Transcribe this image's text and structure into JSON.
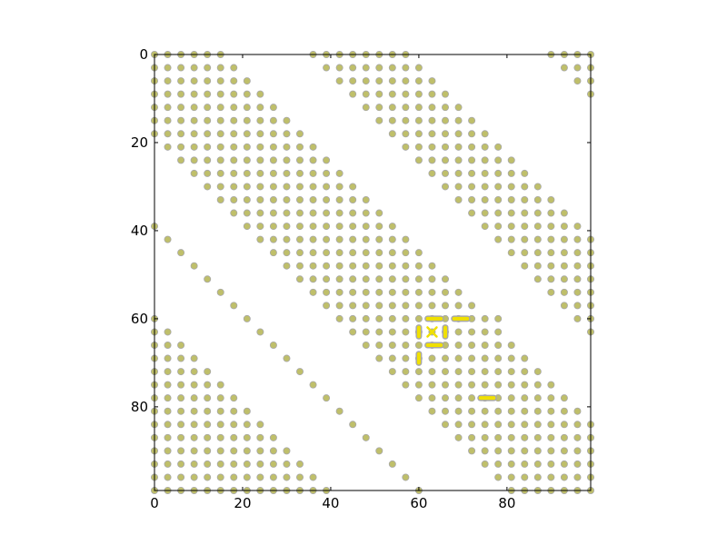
{
  "chart_data": {
    "type": "scatter",
    "title": "",
    "xlabel": "",
    "ylabel": "",
    "xlim": [
      0,
      99
    ],
    "ylim": [
      99,
      0
    ],
    "y_inverted": true,
    "grid": false,
    "x_ticks": [
      0,
      20,
      40,
      60,
      80
    ],
    "y_ticks": [
      0,
      20,
      40,
      60,
      80
    ],
    "x_tick_labels": [
      "0",
      "20",
      "40",
      "60",
      "80"
    ],
    "y_tick_labels": [
      "0",
      "20",
      "40",
      "60",
      "80"
    ],
    "marker_color": "#bfbf6a",
    "marker_edge_color": "#a8a8a8",
    "highlight_color": "#f0e000",
    "diagonal_bands": [
      {
        "name": "",
        "x_minus_y_min": 35,
        "x_minus_y_max": 59
      },
      {
        "name": "",
        "x_minus_y_min": -18,
        "x_minus_y_max": 16
      },
      {
        "name": "",
        "x_minus_y_min": -99,
        "x_minus_y_max": -60
      },
      {
        "name": "",
        "x_minus_y_min": 90,
        "x_minus_y_max": 99
      },
      {
        "name": "",
        "x_minus_y_min": -39,
        "x_minus_y_max": -39
      }
    ],
    "grid_step": 3,
    "block": {
      "x_min": 60,
      "x_max": 78,
      "y_min": 60,
      "y_max": 78
    },
    "highlighted_links": [
      {
        "x1": 62,
        "y1": 60,
        "x2": 65,
        "y2": 60
      },
      {
        "x1": 68,
        "y1": 60,
        "x2": 71,
        "y2": 60
      },
      {
        "x1": 60,
        "y1": 62,
        "x2": 60,
        "y2": 64
      },
      {
        "x1": 66,
        "y1": 62,
        "x2": 66,
        "y2": 64
      },
      {
        "x1": 62,
        "y1": 66,
        "x2": 65,
        "y2": 66
      },
      {
        "x1": 60,
        "y1": 68,
        "x2": 60,
        "y2": 70
      },
      {
        "x1": 74,
        "y1": 78,
        "x2": 77,
        "y2": 78
      }
    ],
    "highlighted_cross": {
      "x": 63,
      "y": 63
    }
  }
}
